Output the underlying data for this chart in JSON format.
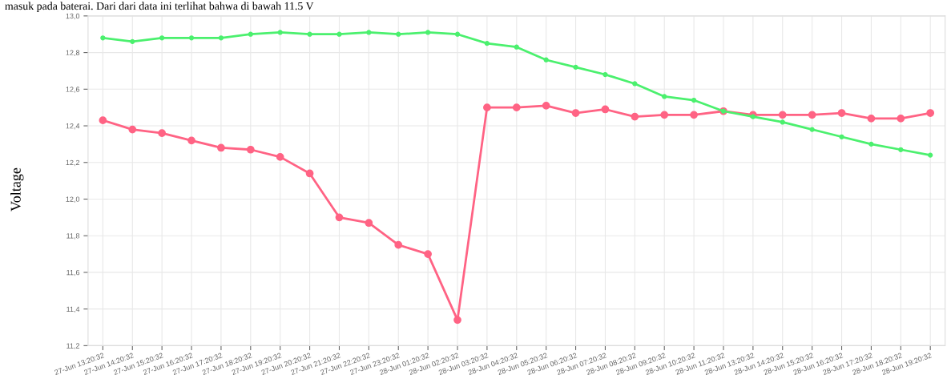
{
  "chart_data": {
    "type": "line",
    "ylabel": "Voltage",
    "annotations": [
      "masuk pada baterai. Dari dari data ini terlihat bahwa di bawah 11.5 V"
    ],
    "categories": [
      "27-Jun 13:20:32",
      "27-Jun 14:20:32",
      "27-Jun 15:20:32",
      "27-Jun 16:20:32",
      "27-Jun 17:20:32",
      "27-Jun 18:20:32",
      "27-Jun 19:20:32",
      "27-Jun 20:20:32",
      "27-Jun 21:20:32",
      "27-Jun 22:20:32",
      "27-Jun 23:20:32",
      "28-Jun 01:20:32",
      "28-Jun 02:20:32",
      "28-Jun 03:20:32",
      "28-Jun 04:20:32",
      "28-Jun 05:20:32",
      "28-Jun 06:20:32",
      "28-Jun 07:20:32",
      "28-Jun 08:20:32",
      "28-Jun 09:20:32",
      "28-Jun 10:20:32",
      "28-Jun 11:20:32",
      "28-Jun 13:20:32",
      "28-Jun 14:20:32",
      "28-Jun 15:20:32",
      "28-Jun 16:20:32",
      "28-Jun 17:20:32",
      "28-Jun 18:20:32",
      "28-Jun 19:20:32"
    ],
    "series": [
      {
        "color": "#ff6384",
        "values": [
          12.43,
          12.38,
          12.36,
          12.32,
          12.28,
          12.27,
          12.23,
          12.14,
          11.9,
          11.87,
          11.75,
          11.7,
          11.34,
          12.5,
          12.5,
          12.51,
          12.47,
          12.49,
          12.45,
          12.46,
          12.46,
          12.48,
          12.46,
          12.46,
          12.46,
          12.47,
          12.44,
          12.44,
          12.47
        ]
      },
      {
        "color": "#4bf06e",
        "values": [
          12.88,
          12.86,
          12.88,
          12.88,
          12.88,
          12.9,
          12.91,
          12.9,
          12.9,
          12.91,
          12.9,
          12.91,
          12.9,
          12.85,
          12.83,
          12.76,
          12.72,
          12.68,
          12.63,
          12.56,
          12.54,
          12.48,
          12.45,
          12.42,
          12.38,
          12.34,
          12.3,
          12.27,
          12.24
        ]
      }
    ],
    "ylim": [
      11.2,
      13.0
    ],
    "yticks": [
      {
        "value": 11.2,
        "label": "11,2"
      },
      {
        "value": 11.4,
        "label": "11,4"
      },
      {
        "value": 11.6,
        "label": "11,6"
      },
      {
        "value": 11.8,
        "label": "11,8"
      },
      {
        "value": 12.0,
        "label": "12,0"
      },
      {
        "value": 12.2,
        "label": "12,2"
      },
      {
        "value": 12.4,
        "label": "12,4"
      },
      {
        "value": 12.6,
        "label": "12,6"
      },
      {
        "value": 12.8,
        "label": "12,8"
      },
      {
        "value": 13.0,
        "label": "13,0"
      }
    ],
    "grid": true,
    "marker": "circle",
    "line_style": "solid"
  }
}
